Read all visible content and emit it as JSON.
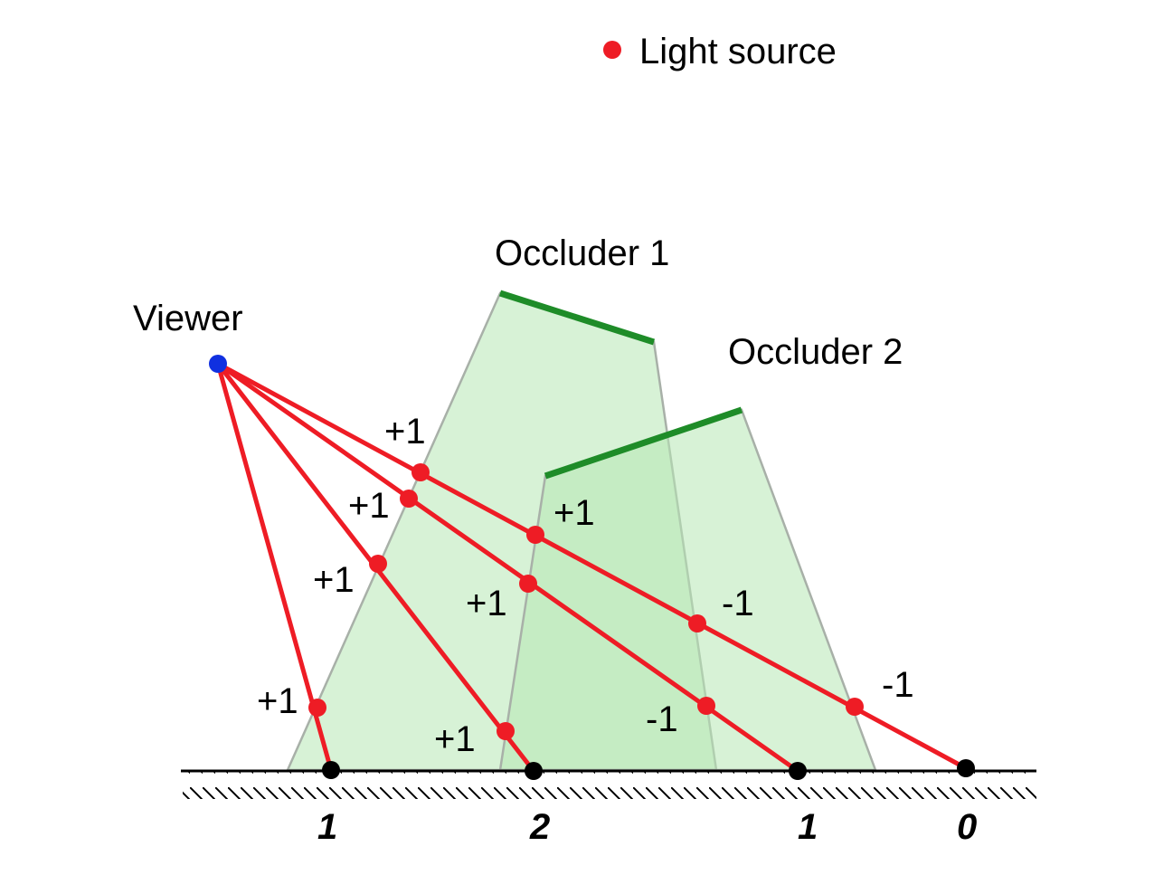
{
  "legend": {
    "label": "Light source",
    "marker_color": "#ee1c25"
  },
  "labels": {
    "viewer": "Viewer",
    "occluder1": "Occluder 1",
    "occluder2": "Occluder 2"
  },
  "counts": {
    "ray1": [
      "+1"
    ],
    "ray2": [
      "+1",
      "+1"
    ],
    "ray3": [
      "+1",
      "+1",
      "-1"
    ],
    "ray4": [
      "+1",
      "+1",
      "-1",
      "-1"
    ]
  },
  "results": [
    "1",
    "2",
    "1",
    "0"
  ],
  "colors": {
    "ray": "#ee1c25",
    "viewer": "#1030e0",
    "occluder": "#1e8c28",
    "shadow_fill": "#b7e8b4",
    "ground_point": "#000000"
  }
}
